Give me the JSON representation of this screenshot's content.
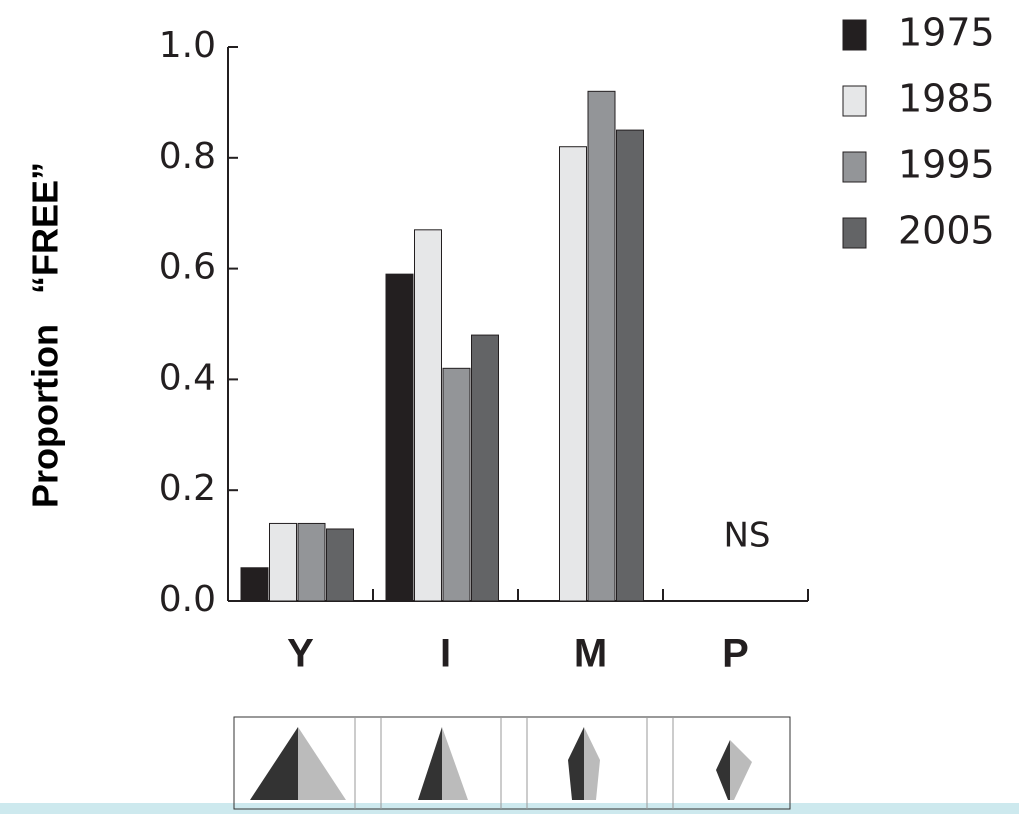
{
  "chart_data": {
    "type": "bar",
    "y_label": "Proportion   “FREE”",
    "categories": [
      "Y",
      "I",
      "M",
      "P"
    ],
    "series": [
      {
        "name": "1975",
        "color": "#231f20",
        "values": [
          0.06,
          0.59,
          null,
          null
        ]
      },
      {
        "name": "1985",
        "color": "#e6e7e8",
        "values": [
          0.14,
          0.67,
          0.82,
          null
        ]
      },
      {
        "name": "1995",
        "color": "#939598",
        "values": [
          0.14,
          0.42,
          0.92,
          null
        ]
      },
      {
        "name": "2005",
        "color": "#636466",
        "values": [
          0.13,
          0.48,
          0.85,
          null
        ]
      }
    ],
    "ylim": [
      0,
      1
    ],
    "yticks": [
      {
        "value": 0,
        "label": "0.0"
      },
      0.2,
      0.4,
      0.6,
      0.8,
      {
        "value": 1,
        "label": "1.0"
      }
    ],
    "annotations": [
      "NS"
    ],
    "legend": "right"
  }
}
